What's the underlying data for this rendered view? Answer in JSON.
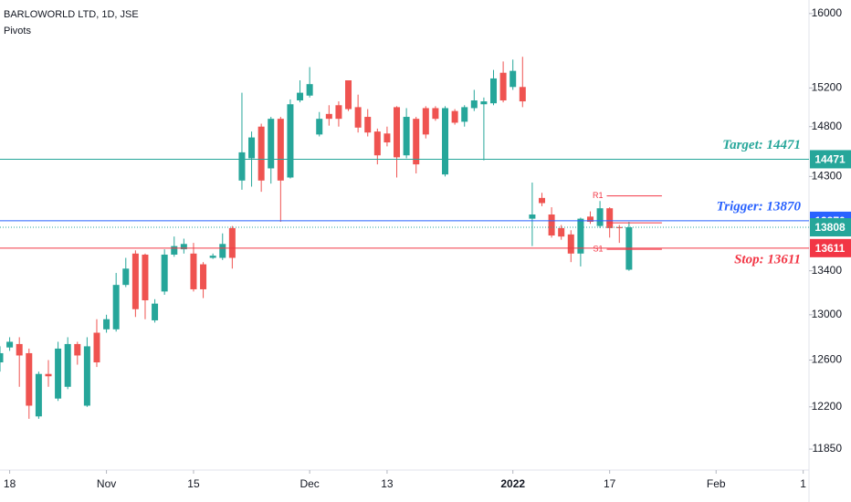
{
  "chart_data": {
    "type": "candlestick",
    "title": "BARLOWORLD LTD, 1D, JSE",
    "subtitle": "Pivots",
    "log_scale": true,
    "up_color": "#26a69a",
    "down_color": "#ef5350",
    "ylim": [
      11680,
      16150
    ],
    "yticks": [
      16000,
      15200,
      14800,
      14300,
      13400,
      13000,
      12600,
      12200,
      11850
    ],
    "xlim": [
      0,
      83.6
    ],
    "xticks": [
      {
        "value": 1,
        "label": "18"
      },
      {
        "value": 11,
        "label": "Nov"
      },
      {
        "value": 20,
        "label": "15"
      },
      {
        "value": 32,
        "label": "Dec"
      },
      {
        "value": 40,
        "label": "13"
      },
      {
        "value": 53,
        "label": "2022"
      },
      {
        "value": 63,
        "label": "17"
      },
      {
        "value": 74,
        "label": "Feb"
      },
      {
        "value": 83,
        "label": "1"
      }
    ],
    "open": [
      12580,
      12710,
      12740,
      12660,
      12120,
      12480,
      12270,
      12370,
      12740,
      12210,
      12840,
      12870,
      12870,
      13270,
      13560,
      13550,
      12950,
      13210,
      13550,
      13600,
      13560,
      13460,
      13520,
      13520,
      13800,
      14260,
      14480,
      14800,
      14380,
      14880,
      14290,
      15070,
      15120,
      14720,
      14930,
      15020,
      15280,
      15000,
      14900,
      14750,
      14730,
      15000,
      14510,
      14880,
      14990,
      14990,
      14320,
      14960,
      14850,
      14990,
      15030,
      15040,
      15360,
      15210,
      15210,
      13890,
      14090,
      13930,
      13800,
      13740,
      13560,
      13910,
      13820,
      13990,
      13810,
      13410
    ],
    "high": [
      12720,
      12800,
      12800,
      12700,
      12500,
      12600,
      12760,
      12800,
      12760,
      12800,
      12960,
      13000,
      13380,
      13520,
      13590,
      13560,
      13140,
      13600,
      13720,
      13700,
      13660,
      13480,
      13560,
      13750,
      13820,
      15150,
      14750,
      14830,
      14900,
      14900,
      15080,
      15280,
      15420,
      14950,
      15020,
      15060,
      15280,
      15130,
      14980,
      14780,
      14800,
      15010,
      14990,
      14900,
      15010,
      15010,
      15010,
      14980,
      15020,
      15180,
      15100,
      15390,
      15480,
      15500,
      15530,
      14240,
      14140,
      14000,
      13830,
      13780,
      13900,
      13960,
      14060,
      14000,
      13830,
      13860
    ],
    "low": [
      12500,
      12680,
      12370,
      12100,
      12100,
      12370,
      12250,
      12350,
      12560,
      12200,
      12540,
      12840,
      12850,
      13250,
      12980,
      12960,
      12930,
      13180,
      13530,
      13560,
      13210,
      13150,
      13510,
      13500,
      13420,
      14170,
      14200,
      14150,
      14230,
      13860,
      14280,
      15050,
      15100,
      14700,
      14810,
      14800,
      14960,
      14740,
      14700,
      14420,
      14600,
      14290,
      14480,
      14330,
      14680,
      14860,
      14300,
      14820,
      14800,
      14960,
      14460,
      15020,
      15050,
      15180,
      15000,
      13630,
      14010,
      13710,
      13690,
      13480,
      13440,
      13840,
      13800,
      13710,
      13660,
      13400
    ],
    "close": [
      12660,
      12760,
      12640,
      12210,
      12480,
      12460,
      12700,
      12740,
      12640,
      12720,
      12580,
      12960,
      13270,
      13420,
      13050,
      13130,
      13100,
      13550,
      13630,
      13650,
      13230,
      13230,
      13540,
      13650,
      13520,
      14540,
      14690,
      14260,
      14880,
      14260,
      15030,
      15150,
      15240,
      14880,
      14880,
      14880,
      14980,
      14790,
      14740,
      14510,
      14640,
      14490,
      14900,
      14420,
      14720,
      14880,
      14990,
      14840,
      15000,
      15070,
      15060,
      15300,
      15070,
      15380,
      15060,
      13930,
      14040,
      13730,
      13720,
      13560,
      13890,
      13860,
      13990,
      13800,
      13800,
      13808
    ],
    "levels": [
      {
        "name": "Target: 14471",
        "value": 14471,
        "color": "#26a69a"
      },
      {
        "name": "Trigger: 13870",
        "value": 13870,
        "color": "#2962ff"
      },
      {
        "name": "Stop: 13611",
        "value": 13611,
        "color": "#f23645"
      }
    ],
    "pivots": [
      {
        "label": "R1",
        "value": 14110
      },
      {
        "value": 13850
      },
      {
        "label": "S1",
        "value": 13600
      }
    ],
    "pivot_color": "#f23645"
  }
}
